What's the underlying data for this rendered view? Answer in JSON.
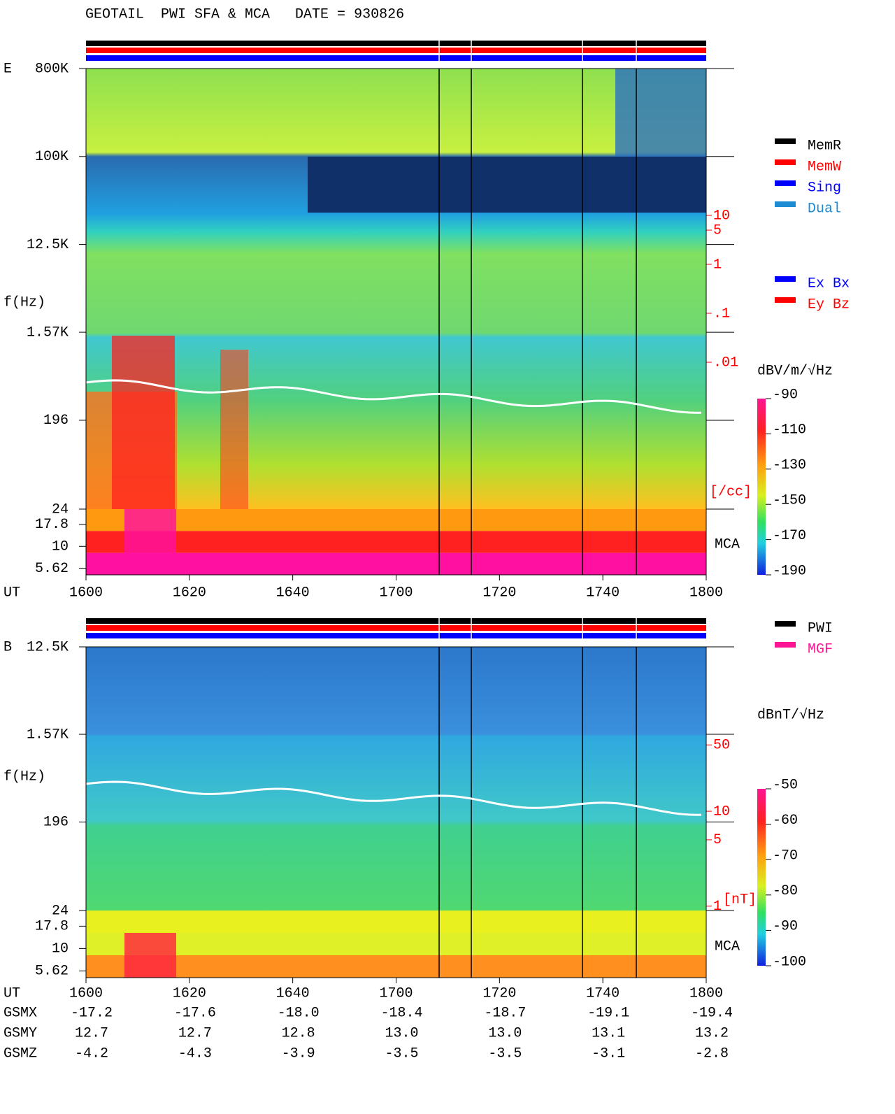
{
  "title": "GEOTAIL  PWI SFA & MCA   DATE = 930826",
  "chart_data": [
    {
      "type": "spectrogram",
      "panel": "E",
      "y_label": "f(Hz)",
      "x_label": "UT",
      "xticks": [
        "1600",
        "1620",
        "1640",
        "1700",
        "1720",
        "1740",
        "1800"
      ],
      "yscale": "log",
      "ylim": [
        24,
        800000
      ],
      "yticks": [
        {
          "value": 800000,
          "label": "800K"
        },
        {
          "value": 100000,
          "label": "100K"
        },
        {
          "value": 12500,
          "label": "12.5K"
        },
        {
          "value": 1570,
          "label": "1.57K"
        },
        196,
        24
      ],
      "mca_label": "MCA",
      "mca_ticks": [
        17.8,
        10,
        5.62
      ],
      "y2lim": [
        1e-05,
        10000
      ],
      "y2ticks": [
        10,
        5,
        1,
        {
          "value": 0.1,
          "label": ".1"
        },
        {
          "value": 0.01,
          "label": ".01"
        }
      ],
      "y2_label": "[/cc]",
      "colorbar_label": "dBV/m/√Hz",
      "colorbar_lim": [
        -190,
        -90
      ],
      "colorbar_ticks": [
        -90,
        -110,
        -130,
        -150,
        -170,
        -190
      ],
      "legend": [
        [
          {
            "name": "MemR",
            "color": "#000000"
          },
          {
            "name": "MemW",
            "color": "#ff0000"
          },
          {
            "name": "Sing",
            "color": "#0000ff"
          },
          {
            "name": "Dual",
            "color": "#1e8cd2"
          }
        ],
        [
          {
            "name": "Ex Bx",
            "color": "#0000ff"
          },
          {
            "name": "Ey Bz",
            "color": "#ff0000"
          }
        ]
      ]
    },
    {
      "type": "spectrogram",
      "panel": "B",
      "y_label": "f(Hz)",
      "x_label": "UT",
      "xticks": [
        "1600",
        "1620",
        "1640",
        "1700",
        "1720",
        "1740",
        "1800"
      ],
      "yscale": "log",
      "ylim": [
        24,
        12500
      ],
      "yticks": [
        {
          "value": 12500,
          "label": "12.5K"
        },
        {
          "value": 1570,
          "label": "1.57K"
        },
        196,
        24
      ],
      "mca_label": "MCA",
      "mca_ticks": [
        17.8,
        10,
        5.62
      ],
      "y2lim": [
        0.9,
        540
      ],
      "y2ticks": [
        50,
        10,
        5,
        1
      ],
      "y2_label": "[nT]",
      "colorbar_label": "dBnT/√Hz",
      "colorbar_lim": [
        -100,
        -50
      ],
      "colorbar_ticks": [
        -50,
        -60,
        -70,
        -80,
        -90,
        -100
      ],
      "legend": [
        [
          {
            "name": "PWI",
            "color": "#000000"
          },
          {
            "name": "MGF",
            "color": "#ff1493"
          }
        ]
      ]
    }
  ],
  "orbit": {
    "rows": [
      {
        "name": "GSMX",
        "values": [
          "-17.2",
          "-17.6",
          "-18.0",
          "-18.4",
          "-18.7",
          "-19.1",
          "-19.4"
        ]
      },
      {
        "name": "GSMY",
        "values": [
          "12.7",
          "12.7",
          "12.8",
          "13.0",
          "13.0",
          "13.1",
          "13.2"
        ]
      },
      {
        "name": "GSMZ",
        "values": [
          "-4.2",
          "-4.3",
          "-3.9",
          "-3.5",
          "-3.5",
          "-3.1",
          "-2.8"
        ]
      }
    ]
  }
}
